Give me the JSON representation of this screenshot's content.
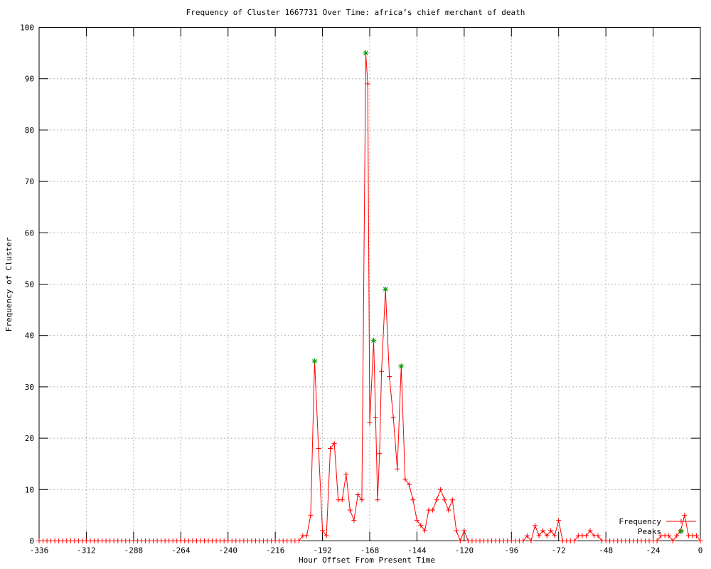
{
  "window": {
    "background": "#ffffff"
  },
  "chart_data": {
    "type": "line",
    "title": "Frequency of Cluster 1667731 Over Time: africa’s chief merchant of death",
    "xlabel": "Hour Offset From Present Time",
    "ylabel": "Frequency of Cluster",
    "xlim": [
      -336,
      0
    ],
    "ylim": [
      0,
      100
    ],
    "x_ticks": [
      -336,
      -312,
      -288,
      -264,
      -240,
      -216,
      -192,
      -168,
      -144,
      -120,
      -96,
      -72,
      -48,
      -24,
      0
    ],
    "y_ticks": [
      0,
      10,
      20,
      30,
      40,
      50,
      60,
      70,
      80,
      90,
      100
    ],
    "grid": true,
    "legend_position": "inside-bottom-right",
    "colors": {
      "frequency": "#ff0000",
      "peaks": "#00a000",
      "grid": "#b0b0b0",
      "axis": "#000000",
      "text": "#000000"
    },
    "series": [
      {
        "name": "Frequency",
        "style": "line-with-plus-markers",
        "color_key": "frequency",
        "points": [
          [
            -336,
            0
          ],
          [
            -334,
            0
          ],
          [
            -332,
            0
          ],
          [
            -330,
            0
          ],
          [
            -328,
            0
          ],
          [
            -326,
            0
          ],
          [
            -324,
            0
          ],
          [
            -322,
            0
          ],
          [
            -320,
            0
          ],
          [
            -318,
            0
          ],
          [
            -316,
            0
          ],
          [
            -314,
            0
          ],
          [
            -312,
            0
          ],
          [
            -310,
            0
          ],
          [
            -308,
            0
          ],
          [
            -306,
            0
          ],
          [
            -304,
            0
          ],
          [
            -302,
            0
          ],
          [
            -300,
            0
          ],
          [
            -298,
            0
          ],
          [
            -296,
            0
          ],
          [
            -294,
            0
          ],
          [
            -292,
            0
          ],
          [
            -290,
            0
          ],
          [
            -288,
            0
          ],
          [
            -286,
            0
          ],
          [
            -284,
            0
          ],
          [
            -282,
            0
          ],
          [
            -280,
            0
          ],
          [
            -278,
            0
          ],
          [
            -276,
            0
          ],
          [
            -274,
            0
          ],
          [
            -272,
            0
          ],
          [
            -270,
            0
          ],
          [
            -268,
            0
          ],
          [
            -266,
            0
          ],
          [
            -264,
            0
          ],
          [
            -262,
            0
          ],
          [
            -260,
            0
          ],
          [
            -258,
            0
          ],
          [
            -256,
            0
          ],
          [
            -254,
            0
          ],
          [
            -252,
            0
          ],
          [
            -250,
            0
          ],
          [
            -248,
            0
          ],
          [
            -246,
            0
          ],
          [
            -244,
            0
          ],
          [
            -242,
            0
          ],
          [
            -240,
            0
          ],
          [
            -238,
            0
          ],
          [
            -236,
            0
          ],
          [
            -234,
            0
          ],
          [
            -232,
            0
          ],
          [
            -230,
            0
          ],
          [
            -228,
            0
          ],
          [
            -226,
            0
          ],
          [
            -224,
            0
          ],
          [
            -222,
            0
          ],
          [
            -220,
            0
          ],
          [
            -218,
            0
          ],
          [
            -216,
            0
          ],
          [
            -214,
            0
          ],
          [
            -212,
            0
          ],
          [
            -210,
            0
          ],
          [
            -208,
            0
          ],
          [
            -206,
            0
          ],
          [
            -204,
            0
          ],
          [
            -202,
            1
          ],
          [
            -200,
            1
          ],
          [
            -198,
            5
          ],
          [
            -196,
            35
          ],
          [
            -194,
            18
          ],
          [
            -192,
            2
          ],
          [
            -190,
            1
          ],
          [
            -188,
            18
          ],
          [
            -186,
            19
          ],
          [
            -184,
            8
          ],
          [
            -182,
            8
          ],
          [
            -180,
            13
          ],
          [
            -178,
            6
          ],
          [
            -176,
            4
          ],
          [
            -174,
            9
          ],
          [
            -172,
            8
          ],
          [
            -170,
            95
          ],
          [
            -169,
            89
          ],
          [
            -168,
            23
          ],
          [
            -166,
            39
          ],
          [
            -165,
            24
          ],
          [
            -164,
            8
          ],
          [
            -163,
            17
          ],
          [
            -162,
            33
          ],
          [
            -160,
            49
          ],
          [
            -158,
            32
          ],
          [
            -156,
            24
          ],
          [
            -154,
            14
          ],
          [
            -152,
            34
          ],
          [
            -150,
            12
          ],
          [
            -148,
            11
          ],
          [
            -146,
            8
          ],
          [
            -144,
            4
          ],
          [
            -142,
            3
          ],
          [
            -140,
            2
          ],
          [
            -138,
            6
          ],
          [
            -136,
            6
          ],
          [
            -134,
            8
          ],
          [
            -132,
            10
          ],
          [
            -130,
            8
          ],
          [
            -128,
            6
          ],
          [
            -126,
            8
          ],
          [
            -124,
            2
          ],
          [
            -122,
            0
          ],
          [
            -120,
            2
          ],
          [
            -118,
            0
          ],
          [
            -116,
            0
          ],
          [
            -114,
            0
          ],
          [
            -112,
            0
          ],
          [
            -110,
            0
          ],
          [
            -108,
            0
          ],
          [
            -106,
            0
          ],
          [
            -104,
            0
          ],
          [
            -102,
            0
          ],
          [
            -100,
            0
          ],
          [
            -98,
            0
          ],
          [
            -96,
            0
          ],
          [
            -94,
            0
          ],
          [
            -92,
            0
          ],
          [
            -90,
            0
          ],
          [
            -88,
            1
          ],
          [
            -86,
            0
          ],
          [
            -84,
            3
          ],
          [
            -82,
            1
          ],
          [
            -80,
            2
          ],
          [
            -78,
            1
          ],
          [
            -76,
            2
          ],
          [
            -74,
            1
          ],
          [
            -72,
            4
          ],
          [
            -70,
            0
          ],
          [
            -68,
            0
          ],
          [
            -66,
            0
          ],
          [
            -64,
            0
          ],
          [
            -62,
            1
          ],
          [
            -60,
            1
          ],
          [
            -58,
            1
          ],
          [
            -56,
            2
          ],
          [
            -54,
            1
          ],
          [
            -52,
            1
          ],
          [
            -50,
            0
          ],
          [
            -48,
            0
          ],
          [
            -46,
            0
          ],
          [
            -44,
            0
          ],
          [
            -42,
            0
          ],
          [
            -40,
            0
          ],
          [
            -38,
            0
          ],
          [
            -36,
            0
          ],
          [
            -34,
            0
          ],
          [
            -32,
            0
          ],
          [
            -30,
            0
          ],
          [
            -28,
            0
          ],
          [
            -26,
            0
          ],
          [
            -24,
            0
          ],
          [
            -22,
            0
          ],
          [
            -20,
            1
          ],
          [
            -18,
            1
          ],
          [
            -16,
            1
          ],
          [
            -14,
            0
          ],
          [
            -12,
            1
          ],
          [
            -10,
            2
          ],
          [
            -8,
            5
          ],
          [
            -6,
            1
          ],
          [
            -4,
            1
          ],
          [
            -2,
            1
          ],
          [
            0,
            0
          ]
        ]
      },
      {
        "name": "Peaks",
        "style": "asterisk-markers",
        "color_key": "peaks",
        "points": [
          [
            -196,
            35
          ],
          [
            -170,
            95
          ],
          [
            -166,
            39
          ],
          [
            -160,
            49
          ],
          [
            -152,
            34
          ]
        ]
      }
    ]
  }
}
